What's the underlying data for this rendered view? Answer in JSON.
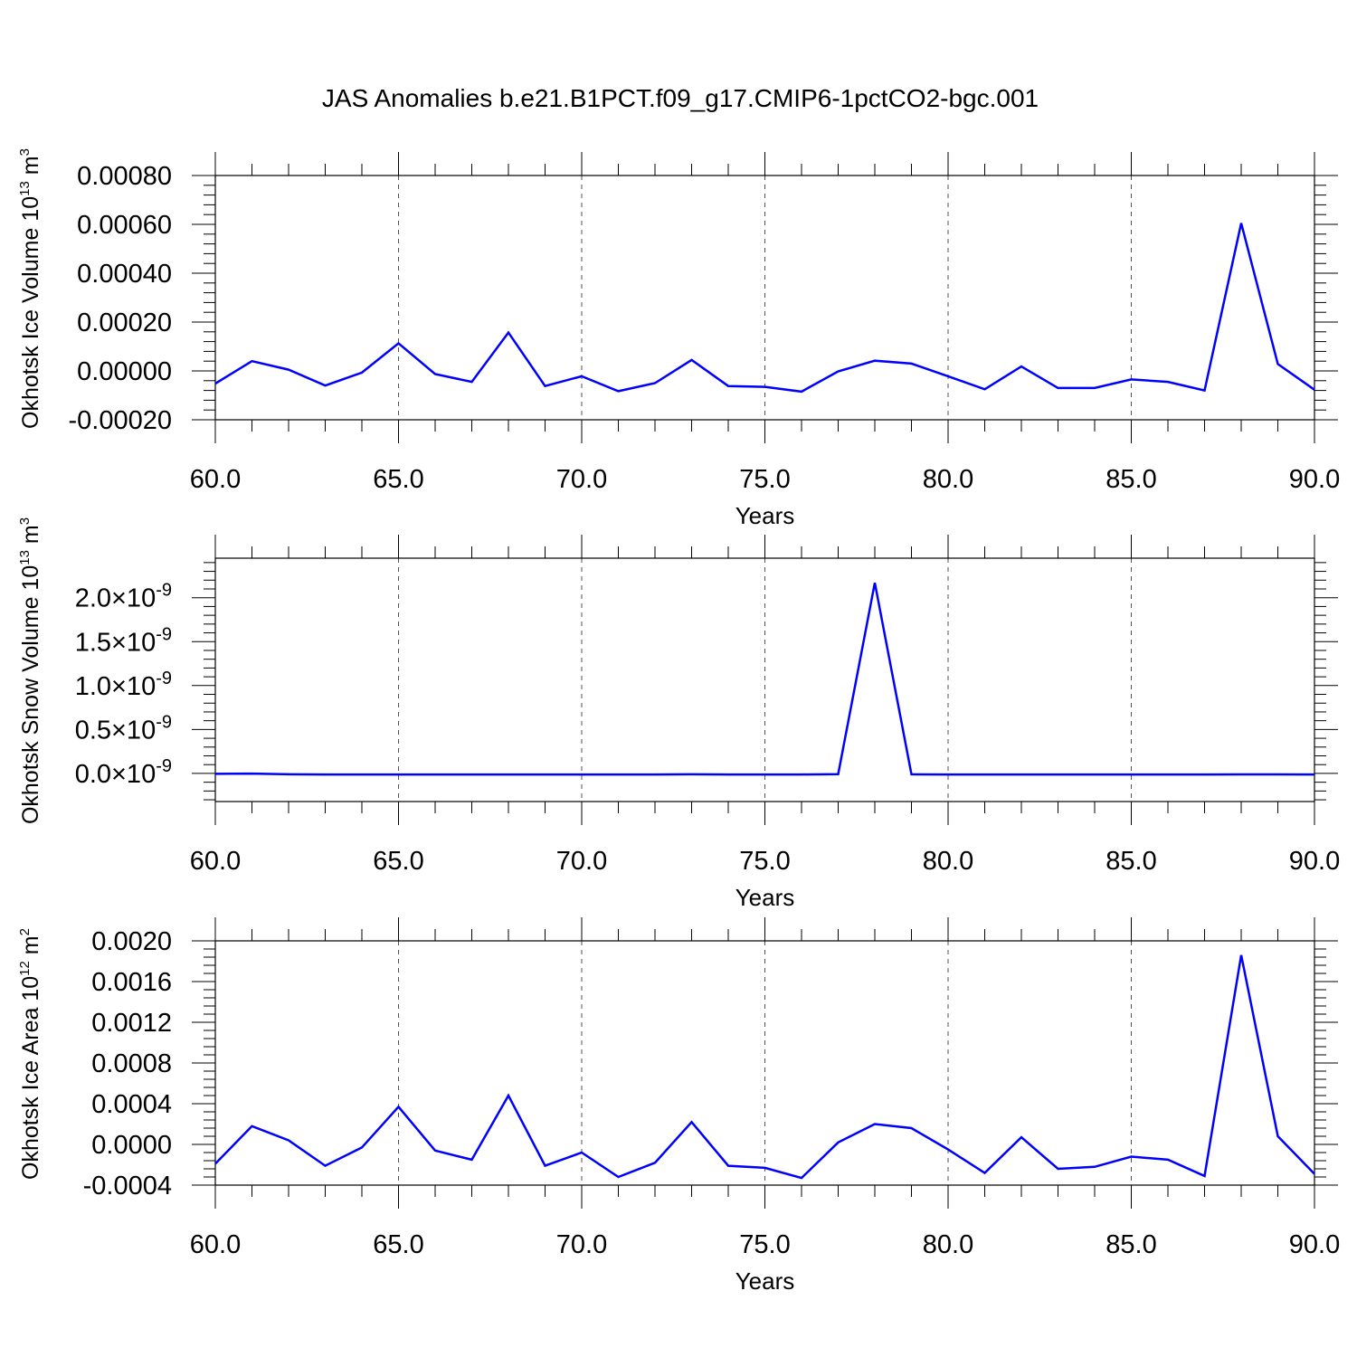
{
  "title": "JAS Anomalies b.e21.B1PCT.f09_g17.CMIP6-1pctCO2-bgc.001",
  "colors": {
    "line": "#0000ff",
    "axes": "#000000",
    "background": "#ffffff"
  },
  "chart_data": [
    {
      "type": "line",
      "xlabel": "Years",
      "ylabel": {
        "text": "Okhotsk Ice Volume 10",
        "exponent": "13",
        "unit": " m",
        "unit_exponent": "3"
      },
      "xlim": [
        60,
        90
      ],
      "ylim": [
        -0.0002,
        0.0008
      ],
      "grid": "vertical dashed",
      "x_ticks": [
        {
          "value": 60,
          "label": "60.0"
        },
        {
          "value": 65,
          "label": "65.0"
        },
        {
          "value": 70,
          "label": "70.0"
        },
        {
          "value": 75,
          "label": "75.0"
        },
        {
          "value": 80,
          "label": "80.0"
        },
        {
          "value": 85,
          "label": "85.0"
        },
        {
          "value": 90,
          "label": "90.0"
        }
      ],
      "y_ticks": [
        {
          "value": 0.0008,
          "label": "0.00080"
        },
        {
          "value": 0.0006,
          "label": "0.00060"
        },
        {
          "value": 0.0004,
          "label": "0.00040"
        },
        {
          "value": 0.0002,
          "label": "0.00020"
        },
        {
          "value": 0.0,
          "label": "0.00000"
        },
        {
          "value": -0.0002,
          "label": "-0.00020"
        }
      ],
      "x": [
        60,
        61,
        62,
        63,
        64,
        65,
        66,
        67,
        68,
        69,
        70,
        71,
        72,
        73,
        74,
        75,
        76,
        77,
        78,
        79,
        80,
        81,
        82,
        83,
        84,
        85,
        86,
        87,
        88,
        89,
        90
      ],
      "y": [
        -5.2e-05,
        4e-05,
        5e-06,
        -6e-05,
        -7e-06,
        0.000113,
        -1.3e-05,
        -4.5e-05,
        0.000157,
        -6.2e-05,
        -2.2e-05,
        -8.3e-05,
        -5e-05,
        4.5e-05,
        -6.2e-05,
        -6.5e-05,
        -8.5e-05,
        -2e-06,
        4.2e-05,
        3e-05,
        -2.2e-05,
        -7.5e-05,
        1.8e-05,
        -7e-05,
        -7e-05,
        -3.5e-05,
        -4.5e-05,
        -8e-05,
        0.000605,
        2.8e-05,
        -7.7e-05
      ]
    },
    {
      "type": "line",
      "xlabel": "Years",
      "ylabel": {
        "text": "Okhotsk Snow Volume 10",
        "exponent": "13",
        "unit": " m",
        "unit_exponent": "3"
      },
      "xlim": [
        60,
        90
      ],
      "ylim": [
        -3.2e-10,
        2.45e-09
      ],
      "grid": "vertical dashed",
      "x_ticks": [
        {
          "value": 60,
          "label": "60.0"
        },
        {
          "value": 65,
          "label": "65.0"
        },
        {
          "value": 70,
          "label": "70.0"
        },
        {
          "value": 75,
          "label": "75.0"
        },
        {
          "value": 80,
          "label": "80.0"
        },
        {
          "value": 85,
          "label": "85.0"
        },
        {
          "value": 90,
          "label": "90.0"
        }
      ],
      "y_ticks": [
        {
          "value": 2e-09,
          "mantissa": "2.0",
          "base": "10",
          "exponent": "-9"
        },
        {
          "value": 1.5e-09,
          "mantissa": "1.5",
          "base": "10",
          "exponent": "-9"
        },
        {
          "value": 1e-09,
          "mantissa": "1.0",
          "base": "10",
          "exponent": "-9"
        },
        {
          "value": 5e-10,
          "mantissa": "0.5",
          "base": "10",
          "exponent": "-9"
        },
        {
          "value": 0.0,
          "mantissa": "0.0",
          "base": "10",
          "exponent": "-9"
        }
      ],
      "x": [
        60,
        61,
        62,
        63,
        64,
        65,
        66,
        67,
        68,
        69,
        70,
        71,
        72,
        73,
        74,
        75,
        76,
        77,
        78,
        79,
        80,
        81,
        82,
        83,
        84,
        85,
        86,
        87,
        88,
        89,
        90
      ],
      "y": [
        -5e-12,
        -2e-12,
        -1e-11,
        -1.2e-11,
        -1.2e-11,
        -1.2e-11,
        -1.2e-11,
        -1.2e-11,
        -1.2e-11,
        -1.2e-11,
        -1.2e-11,
        -1.2e-11,
        -1.2e-11,
        -1e-11,
        -1.2e-11,
        -1.2e-11,
        -1.2e-11,
        -8e-12,
        2.17e-09,
        -1e-11,
        -1.2e-11,
        -1.2e-11,
        -1.2e-11,
        -1.2e-11,
        -1.2e-11,
        -1.2e-11,
        -1.2e-11,
        -1.2e-11,
        -1.1e-11,
        -1.1e-11,
        -1.2e-11
      ]
    },
    {
      "type": "line",
      "xlabel": "Years",
      "ylabel": {
        "text": "Okhotsk Ice Area 10",
        "exponent": "12",
        "unit": " m",
        "unit_exponent": "2"
      },
      "xlim": [
        60,
        90
      ],
      "ylim": [
        -0.0004,
        0.002
      ],
      "grid": "vertical dashed",
      "x_ticks": [
        {
          "value": 60,
          "label": "60.0"
        },
        {
          "value": 65,
          "label": "65.0"
        },
        {
          "value": 70,
          "label": "70.0"
        },
        {
          "value": 75,
          "label": "75.0"
        },
        {
          "value": 80,
          "label": "80.0"
        },
        {
          "value": 85,
          "label": "85.0"
        },
        {
          "value": 90,
          "label": "90.0"
        }
      ],
      "y_ticks": [
        {
          "value": 0.002,
          "label": "0.0020"
        },
        {
          "value": 0.0016,
          "label": "0.0016"
        },
        {
          "value": 0.0012,
          "label": "0.0012"
        },
        {
          "value": 0.0008,
          "label": "0.0008"
        },
        {
          "value": 0.0004,
          "label": "0.0004"
        },
        {
          "value": 0.0,
          "label": "0.0000"
        },
        {
          "value": -0.0004,
          "label": "-0.0004"
        }
      ],
      "x": [
        60,
        61,
        62,
        63,
        64,
        65,
        66,
        67,
        68,
        69,
        70,
        71,
        72,
        73,
        74,
        75,
        76,
        77,
        78,
        79,
        80,
        81,
        82,
        83,
        84,
        85,
        86,
        87,
        88,
        89,
        90
      ],
      "y": [
        -0.00019,
        0.00018,
        4e-05,
        -0.00021,
        -3e-05,
        0.00037,
        -6e-05,
        -0.00015,
        0.00048,
        -0.00021,
        -8e-05,
        -0.00032,
        -0.00018,
        0.00022,
        -0.00021,
        -0.00023,
        -0.00033,
        2e-05,
        0.0002,
        0.00016,
        -5e-05,
        -0.00028,
        7e-05,
        -0.00024,
        -0.00022,
        -0.00012,
        -0.00015,
        -0.00031,
        0.00186,
        8e-05,
        -0.00029
      ]
    }
  ]
}
